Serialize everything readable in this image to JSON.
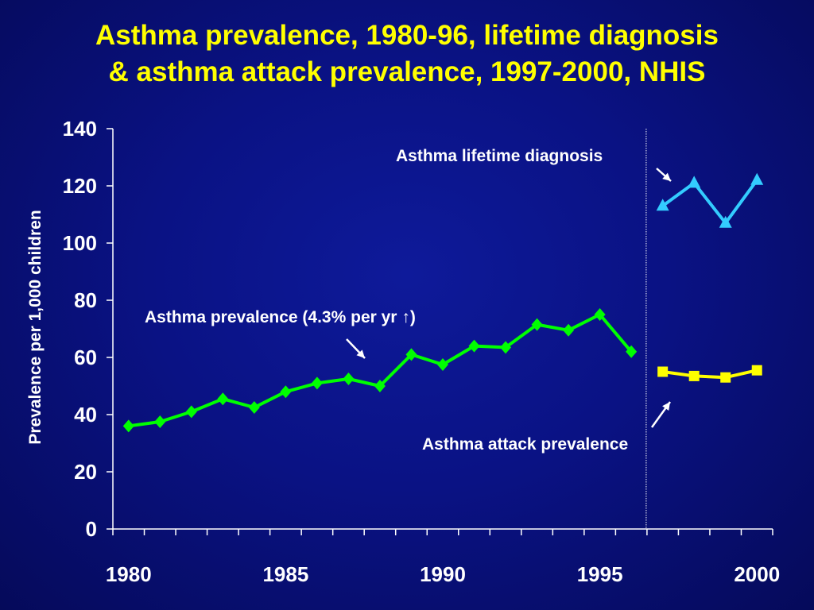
{
  "title": {
    "line1": "Asthma prevalence, 1980-96, lifetime diagnosis",
    "line2": "& asthma attack prevalence, 1997-2000, NHIS"
  },
  "colors": {
    "background": "#0a1284",
    "title": "#ffff00",
    "prevalence": "#00ff00",
    "lifetime": "#33ccff",
    "attack": "#ffff00",
    "text": "#ffffff"
  },
  "chart_data": {
    "type": "line",
    "ylabel": "Prevalence per 1,000 children",
    "xlabel": "",
    "ylim": [
      0,
      140
    ],
    "yticks": [
      "0",
      "20",
      "40",
      "60",
      "80",
      "100",
      "120",
      "140"
    ],
    "xlim": [
      1979.5,
      2000.5
    ],
    "xtick_labels": [
      "1980",
      "1985",
      "1990",
      "1995",
      "2000"
    ],
    "grid": false,
    "divider_between": [
      1996,
      1997
    ],
    "series": [
      {
        "name": "Asthma prevalence",
        "marker": "diamond",
        "color": "#00ff00",
        "x": [
          1980,
          1981,
          1982,
          1983,
          1984,
          1985,
          1986,
          1987,
          1988,
          1989,
          1990,
          1991,
          1992,
          1993,
          1994,
          1995,
          1996
        ],
        "values": [
          36,
          37.5,
          41,
          45.5,
          42.5,
          48,
          51,
          52.5,
          50,
          61,
          57.5,
          64,
          63.5,
          71.5,
          69.5,
          75,
          62
        ]
      },
      {
        "name": "Asthma lifetime diagnosis",
        "marker": "triangle",
        "color": "#33ccff",
        "x": [
          1997,
          1998,
          1999,
          2000
        ],
        "values": [
          113,
          121,
          107,
          122
        ]
      },
      {
        "name": "Asthma attack prevalence",
        "marker": "square",
        "color": "#ffff00",
        "x": [
          1997,
          1998,
          1999,
          2000
        ],
        "values": [
          55,
          53.5,
          53,
          55.5
        ]
      }
    ],
    "annotations": [
      {
        "text": "Asthma prevalence (4.3% per yr ",
        "arrow_glyph": "↑",
        "text_end": ")",
        "series": 0
      },
      {
        "text": "Asthma lifetime diagnosis",
        "series": 1
      },
      {
        "text": "Asthma attack prevalence",
        "series": 2
      }
    ]
  }
}
